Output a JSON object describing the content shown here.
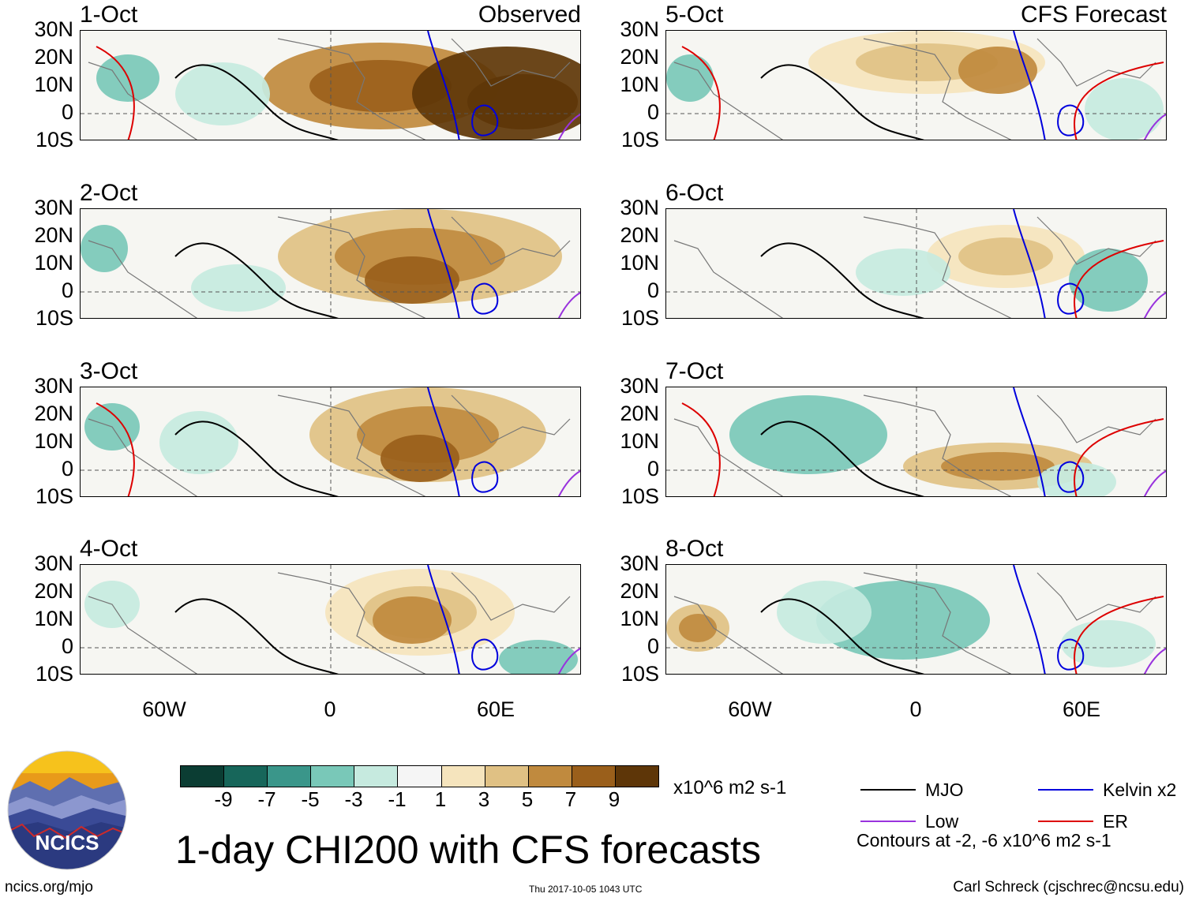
{
  "chart_data": {
    "type": "heatmap",
    "title": "1-day CHI200 with CFS forecasts",
    "units": "x10^6 m2 s-1",
    "colorbar": {
      "ticks": [
        "-9",
        "-7",
        "-5",
        "-3",
        "-1",
        "1",
        "3",
        "5",
        "7",
        "9"
      ],
      "colors": [
        "#0b3d33",
        "#17665a",
        "#3a968a",
        "#79c8b8",
        "#c6eadf",
        "#f5f5f5",
        "#f5e4bd",
        "#e0c184",
        "#c08a3e",
        "#9a5f1b",
        "#5e3608"
      ]
    },
    "latitude_ticks": [
      "30N",
      "20N",
      "10N",
      "0",
      "10S"
    ],
    "longitude_ticks": [
      "60W",
      "0",
      "60E"
    ],
    "observed_label": "Observed",
    "forecast_label": "CFS Forecast",
    "observed_panels": [
      {
        "date": "1-Oct",
        "anomaly": "strong positive (suppressed) over Africa and Arabian Sea",
        "peak": 9
      },
      {
        "date": "2-Oct",
        "anomaly": "positive over Africa",
        "peak": 7
      },
      {
        "date": "3-Oct",
        "anomaly": "positive over central Africa",
        "peak": 7
      },
      {
        "date": "4-Oct",
        "anomaly": "positive over eastern Africa",
        "peak": 5
      }
    ],
    "forecast_panels": [
      {
        "date": "5-Oct",
        "anomaly": "weak positive over Africa",
        "peak": 5
      },
      {
        "date": "6-Oct",
        "anomaly": "weak, mixed",
        "peak": 3
      },
      {
        "date": "7-Oct",
        "anomaly": "negative over Atlantic",
        "peak": -5
      },
      {
        "date": "8-Oct",
        "anomaly": "negative over West Africa",
        "peak": -5
      }
    ],
    "legend": [
      {
        "name": "MJO",
        "color": "#000000"
      },
      {
        "name": "Kelvin x2",
        "color": "#0000dd"
      },
      {
        "name": "Low",
        "color": "#9933dd"
      },
      {
        "name": "ER",
        "color": "#dd0000"
      }
    ],
    "contour_note": "Contours at -2, -6 x10^6 m2 s-1"
  },
  "logo": {
    "text": "NCICS"
  },
  "footer": {
    "left": "ncics.org/mjo",
    "middle": "Thu 2017-10-05 1043 UTC",
    "right": "Carl Schreck (cjschrec@ncsu.edu)"
  }
}
